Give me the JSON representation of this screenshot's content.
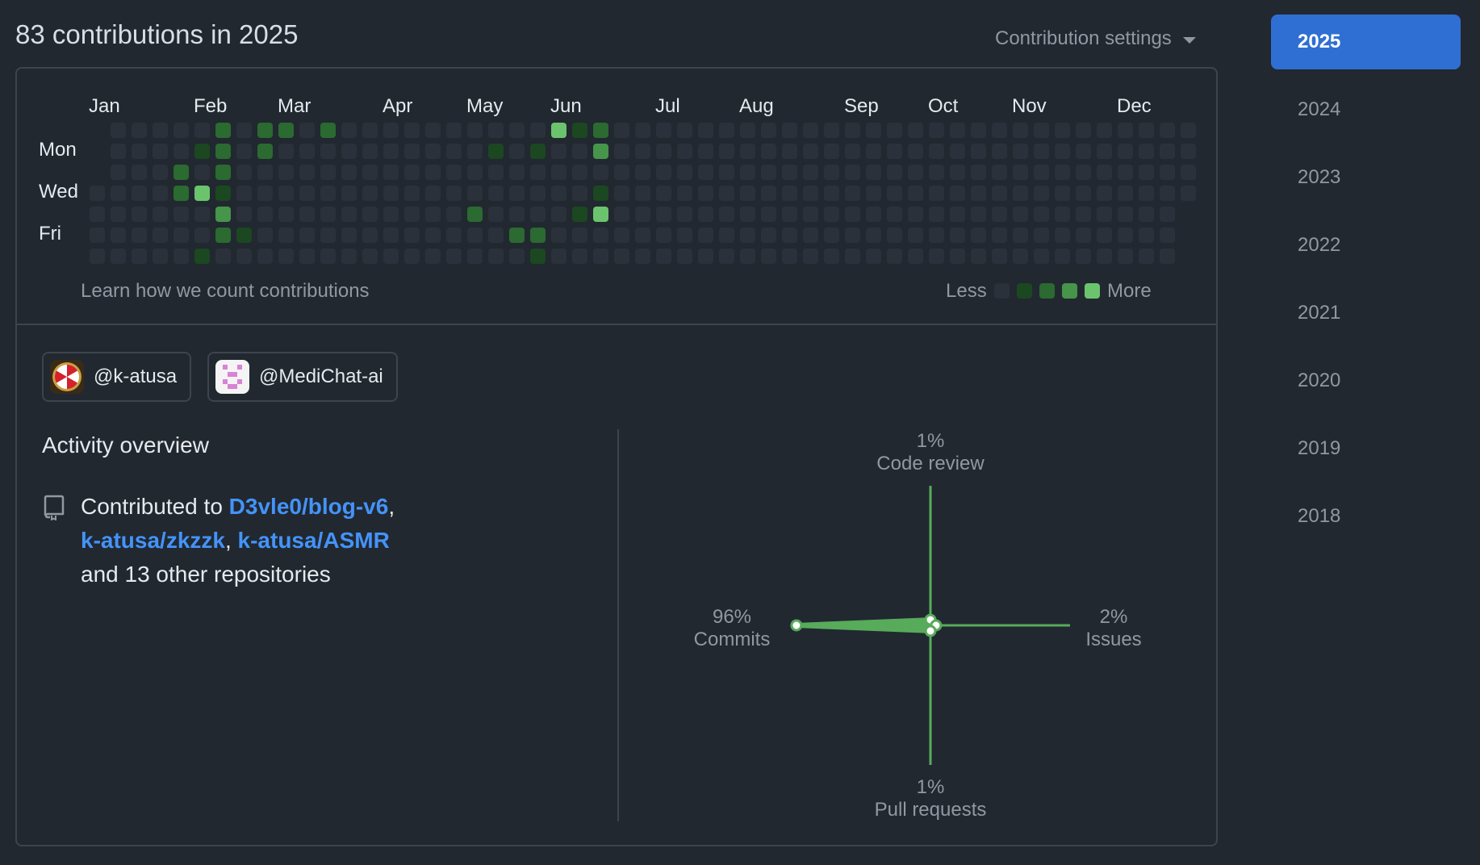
{
  "header": {
    "title": "83 contributions in 2025",
    "settings_label": "Contribution settings"
  },
  "calendar": {
    "months": [
      "Jan",
      "Feb",
      "Mar",
      "Apr",
      "May",
      "Jun",
      "Jul",
      "Aug",
      "Sep",
      "Oct",
      "Nov",
      "Dec"
    ],
    "day_labels": [
      "Mon",
      "Wed",
      "Fri"
    ],
    "footer_link": "Learn how we count contributions",
    "legend_less": "Less",
    "legend_more": "More",
    "level_colors": [
      "#2a313b",
      "#1b4721",
      "#2b6a30",
      "#46954a",
      "#6bc46d"
    ],
    "active_cells": [
      {
        "week": 6,
        "day": 0,
        "level": 2
      },
      {
        "week": 8,
        "day": 0,
        "level": 2
      },
      {
        "week": 9,
        "day": 0,
        "level": 2
      },
      {
        "week": 11,
        "day": 0,
        "level": 2
      },
      {
        "week": 22,
        "day": 0,
        "level": 4
      },
      {
        "week": 23,
        "day": 0,
        "level": 1
      },
      {
        "week": 24,
        "day": 0,
        "level": 2
      },
      {
        "week": 5,
        "day": 1,
        "level": 1
      },
      {
        "week": 6,
        "day": 1,
        "level": 2
      },
      {
        "week": 8,
        "day": 1,
        "level": 2
      },
      {
        "week": 19,
        "day": 1,
        "level": 1
      },
      {
        "week": 21,
        "day": 1,
        "level": 1
      },
      {
        "week": 24,
        "day": 1,
        "level": 3
      },
      {
        "week": 4,
        "day": 2,
        "level": 2
      },
      {
        "week": 6,
        "day": 2,
        "level": 2
      },
      {
        "week": 4,
        "day": 3,
        "level": 2
      },
      {
        "week": 5,
        "day": 3,
        "level": 4
      },
      {
        "week": 6,
        "day": 3,
        "level": 1
      },
      {
        "week": 24,
        "day": 3,
        "level": 1
      },
      {
        "week": 6,
        "day": 4,
        "level": 3
      },
      {
        "week": 18,
        "day": 4,
        "level": 2
      },
      {
        "week": 23,
        "day": 4,
        "level": 1
      },
      {
        "week": 24,
        "day": 4,
        "level": 4
      },
      {
        "week": 6,
        "day": 5,
        "level": 2
      },
      {
        "week": 7,
        "day": 5,
        "level": 1
      },
      {
        "week": 20,
        "day": 5,
        "level": 2
      },
      {
        "week": 21,
        "day": 5,
        "level": 2
      },
      {
        "week": 5,
        "day": 6,
        "level": 1
      },
      {
        "week": 21,
        "day": 6,
        "level": 1
      }
    ]
  },
  "orgs": [
    {
      "label": "@k-atusa",
      "avatar": "umbrella-logo-icon"
    },
    {
      "label": "@MediChat-ai",
      "avatar": "pixel-identicon-icon"
    }
  ],
  "overview": {
    "title": "Activity overview",
    "prefix": "Contributed to ",
    "repo1": "D3vle0/blog-v6",
    "comma1": ",",
    "repo2": "k-atusa/zkzzk",
    "comma2": ", ",
    "repo3": "k-atusa/ASMR",
    "suffix": "and 13 other repositories"
  },
  "radar": {
    "code_review": {
      "pct": "1%",
      "label": "Code review",
      "value": 1
    },
    "issues": {
      "pct": "2%",
      "label": "Issues",
      "value": 2
    },
    "pull_requests": {
      "pct": "1%",
      "label": "Pull requests",
      "value": 1
    },
    "commits": {
      "pct": "96%",
      "label": "Commits",
      "value": 96
    },
    "line_color": "#57ab5a"
  },
  "years": [
    "2025",
    "2024",
    "2023",
    "2022",
    "2021",
    "2020",
    "2019",
    "2018"
  ],
  "selected_year": "2025"
}
